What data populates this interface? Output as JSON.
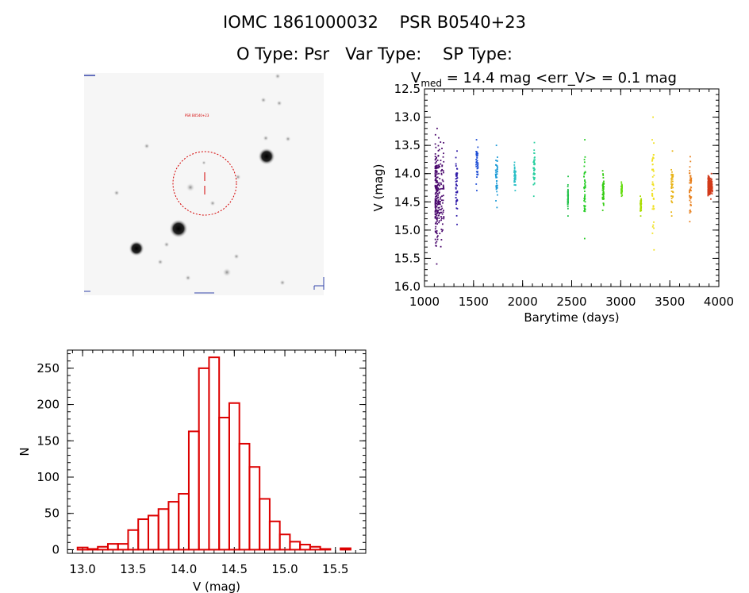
{
  "header": {
    "line1": "IOMC 1861000032    PSR B0540+23",
    "line2": "O Type: Psr   Var Type:    SP Type:"
  },
  "image_panel": {
    "object_label": "PSR B0540+23",
    "marker_color": "#d40000"
  },
  "lightcurve_title": {
    "prefix": "V",
    "subscript": "med",
    "suffix": " = 14.4 mag <err_V> = 0.1 mag"
  },
  "colors": {
    "histogram": "#dd0000"
  },
  "chart_data": [
    {
      "type": "scatter",
      "xlabel": "Barytime (days)",
      "ylabel": "V (mag)",
      "xlim": [
        1000,
        4000
      ],
      "ylim": [
        16.0,
        12.5
      ],
      "y_inverted": true,
      "xticks": [
        "1000",
        "1500",
        "2000",
        "2500",
        "3000",
        "3500",
        "4000"
      ],
      "yticks": [
        "12.5",
        "13.0",
        "13.5",
        "14.0",
        "14.5",
        "15.0",
        "15.5",
        "16.0"
      ],
      "series": [
        {
          "color": "#4b0a6e",
          "x": [
            1110,
            1200
          ],
          "y_range": [
            13.2,
            15.6
          ]
        },
        {
          "color": "#2e1aa8",
          "x": [
            1320,
            1335
          ],
          "y_range": [
            13.6,
            14.9
          ]
        },
        {
          "color": "#1f4fd6",
          "x": [
            1525,
            1545
          ],
          "y_range": [
            13.4,
            14.3
          ]
        },
        {
          "color": "#1b9ad6",
          "x": [
            1725,
            1745
          ],
          "y_range": [
            13.5,
            14.6
          ]
        },
        {
          "color": "#2bbfc6",
          "x": [
            1915,
            1930
          ],
          "y_range": [
            13.8,
            14.3
          ]
        },
        {
          "color": "#2ad0a0",
          "x": [
            2110,
            2125
          ],
          "y_range": [
            13.45,
            14.4
          ]
        },
        {
          "color": "#22c34a",
          "x": [
            2460,
            2465
          ],
          "y_range": [
            14.05,
            14.75
          ]
        },
        {
          "color": "#22cc22",
          "x": [
            2625,
            2640
          ],
          "y_range": [
            13.4,
            15.15
          ]
        },
        {
          "color": "#33cc11",
          "x": [
            2815,
            2830
          ],
          "y_range": [
            13.95,
            14.65
          ]
        },
        {
          "color": "#66dd11",
          "x": [
            3005,
            3015
          ],
          "y_range": [
            14.15,
            14.4
          ]
        },
        {
          "color": "#aadd00",
          "x": [
            3200,
            3210
          ],
          "y_range": [
            14.4,
            14.75
          ]
        },
        {
          "color": "#f0e020",
          "x": [
            3320,
            3340
          ],
          "y_range": [
            13.0,
            15.35
          ]
        },
        {
          "color": "#e8b418",
          "x": [
            3515,
            3535
          ],
          "y_range": [
            13.6,
            14.75
          ]
        },
        {
          "color": "#e8801e",
          "x": [
            3700,
            3720
          ],
          "y_range": [
            13.7,
            14.85
          ]
        },
        {
          "color": "#d23a1a",
          "x": [
            3890,
            3935
          ],
          "y_range": [
            14.0,
            14.45
          ]
        }
      ]
    },
    {
      "type": "bar",
      "xlabel": "V (mag)",
      "ylabel": "N",
      "xlim": [
        12.85,
        15.8
      ],
      "ylim": [
        -5,
        275
      ],
      "bin_width": 0.1,
      "xticks": [
        "13.0",
        "13.5",
        "14.0",
        "14.5",
        "15.0",
        "15.5"
      ],
      "yticks": [
        "0",
        "50",
        "100",
        "150",
        "200",
        "250"
      ],
      "bin_left_edges": [
        12.95,
        13.05,
        13.15,
        13.25,
        13.35,
        13.45,
        13.55,
        13.65,
        13.75,
        13.85,
        13.95,
        14.05,
        14.15,
        14.25,
        14.35,
        14.45,
        14.55,
        14.65,
        14.75,
        14.85,
        14.95,
        15.05,
        15.15,
        15.25,
        15.35,
        15.45,
        15.55,
        15.65
      ],
      "values": [
        3,
        1,
        4,
        8,
        8,
        27,
        42,
        47,
        56,
        66,
        77,
        163,
        250,
        265,
        182,
        202,
        146,
        114,
        70,
        39,
        21,
        11,
        7,
        4,
        1,
        0,
        2,
        0
      ]
    }
  ]
}
